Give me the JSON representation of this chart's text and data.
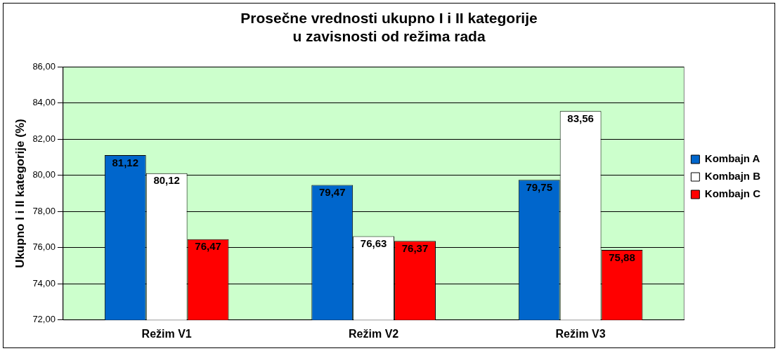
{
  "chart_data": {
    "type": "bar",
    "title": "Prosečne vrednosti ukupno I i II kategorije\nu zavisnosti od režima rada",
    "ylabel": "Ukupno I i II kategorije (%)",
    "categories": [
      "Režim V1",
      "Režim V2",
      "Režim V3"
    ],
    "series": [
      {
        "name": "Kombajn A",
        "color": "#0066cc",
        "values": [
          81.12,
          79.47,
          79.75
        ],
        "value_labels": [
          "81,12",
          "79,47",
          "79,75"
        ]
      },
      {
        "name": "Kombajn B",
        "color": "#ffffff",
        "values": [
          80.12,
          76.63,
          83.56
        ],
        "value_labels": [
          "80,12",
          "76,63",
          "83,56"
        ]
      },
      {
        "name": "Kombajn C",
        "color": "#ff0000",
        "values": [
          76.47,
          76.37,
          75.88
        ],
        "value_labels": [
          "76,47",
          "76,37",
          "75,88"
        ]
      }
    ],
    "ylim": [
      72,
      86
    ],
    "yticks": [
      {
        "value": 72,
        "label": "72,00"
      },
      {
        "value": 74,
        "label": "74,00"
      },
      {
        "value": 76,
        "label": "76,00"
      },
      {
        "value": 78,
        "label": "78,00"
      },
      {
        "value": 80,
        "label": "80,00"
      },
      {
        "value": 82,
        "label": "82,00"
      },
      {
        "value": 84,
        "label": "84,00"
      },
      {
        "value": 86,
        "label": "86,00"
      }
    ],
    "grid": "y",
    "legend": "right"
  }
}
